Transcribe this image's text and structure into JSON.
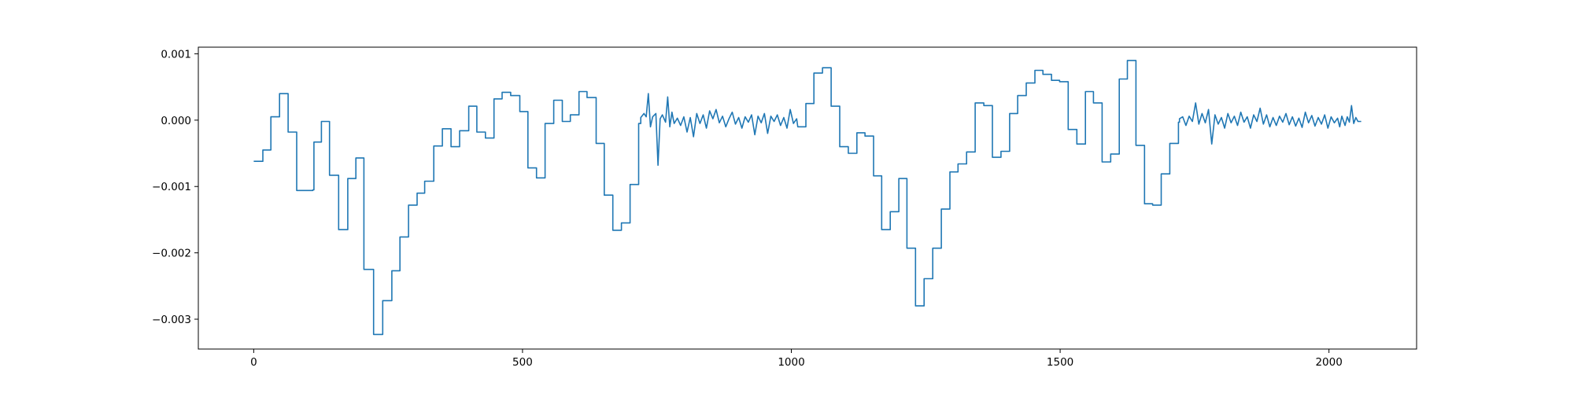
{
  "chart_data": {
    "type": "line",
    "title": "",
    "xlabel": "",
    "ylabel": "",
    "xlim": [
      -103,
      2163
    ],
    "ylim": [
      -0.00345,
      0.0011
    ],
    "x_ticks": [
      0,
      500,
      1000,
      1500,
      2000
    ],
    "x_tick_labels": [
      "0",
      "500",
      "1000",
      "1500",
      "2000"
    ],
    "y_ticks": [
      0.001,
      0.0,
      -0.001,
      -0.002,
      -0.003
    ],
    "y_tick_labels": [
      "0.001",
      "0.000",
      "−0.001",
      "−0.002",
      "−0.003"
    ],
    "grid": false,
    "legend": "none",
    "series_color": "#1f77b4",
    "series": [
      {
        "steps": [
          [
            0,
            -0.00062
          ],
          [
            17,
            -0.00045
          ],
          [
            32,
            5e-05
          ],
          [
            48,
            0.0004
          ],
          [
            64,
            -0.00018
          ],
          [
            80,
            -0.00106
          ],
          [
            110,
            -0.00105
          ],
          [
            112,
            -0.00033
          ],
          [
            126,
            -2e-05
          ],
          [
            141,
            -0.00083
          ],
          [
            158,
            -0.00165
          ],
          [
            175,
            -0.00088
          ],
          [
            190,
            -0.00057
          ],
          [
            205,
            -0.00225
          ],
          [
            223,
            -0.00323
          ],
          [
            240,
            -0.00272
          ],
          [
            257,
            -0.00227
          ],
          [
            272,
            -0.00176
          ],
          [
            288,
            -0.00128
          ],
          [
            304,
            -0.0011
          ],
          [
            318,
            -0.00092
          ],
          [
            335,
            -0.00039
          ],
          [
            351,
            -0.00013
          ],
          [
            367,
            -0.0004
          ],
          [
            383,
            -0.00016
          ],
          [
            400,
            0.00021
          ],
          [
            415,
            -0.00018
          ],
          [
            431,
            -0.00027
          ],
          [
            447,
            0.00032
          ],
          [
            462,
            0.00042
          ],
          [
            478,
            0.00037
          ],
          [
            495,
            0.00013
          ],
          [
            510,
            -0.00072
          ],
          [
            526,
            -0.00087
          ],
          [
            542,
            -5e-05
          ],
          [
            558,
            0.0003
          ],
          [
            574,
            -2e-05
          ],
          [
            589,
            8e-05
          ],
          [
            605,
            0.00043
          ],
          [
            620,
            0.00034
          ],
          [
            637,
            -0.00035
          ],
          [
            652,
            -0.00113
          ],
          [
            668,
            -0.00166
          ],
          [
            684,
            -0.00155
          ],
          [
            700,
            -0.00097
          ],
          [
            716,
            -5e-05
          ]
        ],
        "noise1": [
          [
            720,
            4e-05
          ],
          [
            726,
            0.0001
          ],
          [
            730,
            5e-05
          ],
          [
            734,
            0.0004
          ],
          [
            738,
            -0.0001
          ],
          [
            742,
            5e-05
          ],
          [
            748,
            0.0001
          ],
          [
            752,
            -0.00068
          ],
          [
            756,
            2e-05
          ],
          [
            760,
            8e-05
          ],
          [
            766,
            -3e-05
          ],
          [
            770,
            0.00035
          ],
          [
            774,
            -0.0001
          ],
          [
            778,
            0.00012
          ],
          [
            782,
            -5e-05
          ],
          [
            788,
            3e-05
          ],
          [
            794,
            -8e-05
          ],
          [
            800,
            5e-05
          ],
          [
            806,
            -0.00018
          ],
          [
            812,
            4e-05
          ],
          [
            818,
            -0.00025
          ],
          [
            824,
            0.0001
          ],
          [
            830,
            -5e-05
          ],
          [
            836,
            8e-05
          ],
          [
            842,
            -0.00012
          ],
          [
            848,
            0.00014
          ],
          [
            854,
            2e-05
          ],
          [
            860,
            0.00016
          ],
          [
            866,
            -4e-05
          ],
          [
            872,
            6e-05
          ],
          [
            878,
            -0.0001
          ],
          [
            884,
            2e-05
          ],
          [
            890,
            0.00012
          ],
          [
            896,
            -6e-05
          ],
          [
            902,
            4e-05
          ],
          [
            908,
            -0.00012
          ],
          [
            914,
            5e-05
          ],
          [
            920,
            -3e-05
          ],
          [
            926,
            8e-05
          ],
          [
            932,
            -0.00022
          ],
          [
            938,
            6e-05
          ],
          [
            944,
            -4e-05
          ],
          [
            950,
            0.0001
          ],
          [
            956,
            -0.0002
          ],
          [
            962,
            6e-05
          ],
          [
            968,
            -2e-05
          ],
          [
            974,
            8e-05
          ],
          [
            980,
            -8e-05
          ],
          [
            986,
            4e-05
          ],
          [
            992,
            -0.00012
          ],
          [
            998,
            0.00016
          ],
          [
            1004,
            -5e-05
          ],
          [
            1010,
            2e-05
          ]
        ],
        "steps2": [
          [
            1012,
            -0.0001
          ],
          [
            1027,
            0.00025
          ],
          [
            1042,
            0.00071
          ],
          [
            1058,
            0.00079
          ],
          [
            1074,
            0.00021
          ],
          [
            1090,
            -0.0004
          ],
          [
            1106,
            -0.0005
          ],
          [
            1122,
            -0.00019
          ],
          [
            1137,
            -0.00024
          ],
          [
            1153,
            -0.00084
          ],
          [
            1168,
            -0.00165
          ],
          [
            1184,
            -0.00138
          ],
          [
            1200,
            -0.00088
          ],
          [
            1215,
            -0.00193
          ],
          [
            1231,
            -0.0028
          ],
          [
            1247,
            -0.00239
          ],
          [
            1263,
            -0.00193
          ],
          [
            1279,
            -0.00134
          ],
          [
            1295,
            -0.00078
          ],
          [
            1310,
            -0.00066
          ],
          [
            1326,
            -0.00048
          ],
          [
            1342,
            0.00026
          ],
          [
            1358,
            0.00022
          ],
          [
            1374,
            -0.00056
          ],
          [
            1390,
            -0.00047
          ],
          [
            1406,
            0.0001
          ],
          [
            1421,
            0.00037
          ],
          [
            1437,
            0.00056
          ],
          [
            1453,
            0.00075
          ],
          [
            1468,
            0.00069
          ],
          [
            1484,
            0.0006
          ],
          [
            1499,
            0.00058
          ],
          [
            1515,
            -0.00014
          ],
          [
            1531,
            -0.00036
          ],
          [
            1547,
            0.00043
          ],
          [
            1562,
            0.00026
          ],
          [
            1578,
            -0.00063
          ],
          [
            1594,
            -0.00051
          ],
          [
            1610,
            0.00062
          ],
          [
            1625,
            0.0009
          ],
          [
            1641,
            -0.00038
          ],
          [
            1657,
            -0.00126
          ],
          [
            1672,
            -0.00128
          ],
          [
            1688,
            -0.00081
          ],
          [
            1704,
            -0.00035
          ],
          [
            1720,
            -3e-05
          ]
        ],
        "noise2": [
          [
            1722,
            2e-05
          ],
          [
            1728,
            5e-05
          ],
          [
            1734,
            -8e-05
          ],
          [
            1740,
            6e-05
          ],
          [
            1746,
            -2e-05
          ],
          [
            1752,
            0.00026
          ],
          [
            1758,
            -6e-05
          ],
          [
            1764,
            0.0001
          ],
          [
            1770,
            -4e-05
          ],
          [
            1776,
            0.00016
          ],
          [
            1782,
            -0.00036
          ],
          [
            1788,
            8e-05
          ],
          [
            1794,
            -6e-05
          ],
          [
            1800,
            4e-05
          ],
          [
            1806,
            -0.00012
          ],
          [
            1812,
            0.0001
          ],
          [
            1818,
            -4e-05
          ],
          [
            1824,
            6e-05
          ],
          [
            1830,
            -8e-05
          ],
          [
            1836,
            0.00012
          ],
          [
            1842,
            -3e-05
          ],
          [
            1848,
            5e-05
          ],
          [
            1854,
            -0.00012
          ],
          [
            1860,
            8e-05
          ],
          [
            1866,
            -2e-05
          ],
          [
            1872,
            0.00018
          ],
          [
            1878,
            -6e-05
          ],
          [
            1884,
            8e-05
          ],
          [
            1890,
            -0.0001
          ],
          [
            1896,
            4e-05
          ],
          [
            1902,
            -8e-05
          ],
          [
            1908,
            6e-05
          ],
          [
            1914,
            -3e-05
          ],
          [
            1920,
            0.0001
          ],
          [
            1926,
            -7e-05
          ],
          [
            1932,
            5e-05
          ],
          [
            1938,
            -9e-05
          ],
          [
            1944,
            3e-05
          ],
          [
            1950,
            -0.00011
          ],
          [
            1956,
            0.00012
          ],
          [
            1962,
            -4e-05
          ],
          [
            1968,
            7e-05
          ],
          [
            1974,
            -9e-05
          ],
          [
            1980,
            4e-05
          ],
          [
            1986,
            -6e-05
          ],
          [
            1992,
            8e-05
          ],
          [
            1998,
            -0.00012
          ],
          [
            2004,
            5e-05
          ],
          [
            2010,
            -4e-05
          ],
          [
            2016,
            3e-05
          ],
          [
            2020,
            -0.0001
          ],
          [
            2024,
            6e-05
          ],
          [
            2030,
            -8e-05
          ],
          [
            2034,
            5e-05
          ],
          [
            2038,
            -3e-05
          ],
          [
            2042,
            0.00022
          ],
          [
            2046,
            -5e-05
          ],
          [
            2050,
            4e-05
          ],
          [
            2054,
            -2e-05
          ],
          [
            2060,
            -2e-05
          ]
        ]
      }
    ]
  }
}
